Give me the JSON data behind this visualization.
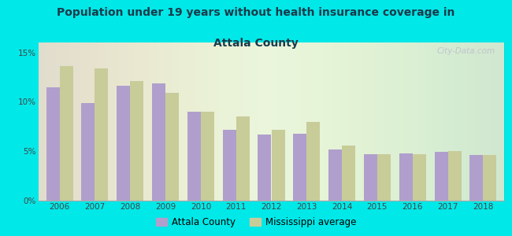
{
  "title_line1": "Population under 19 years without health insurance coverage in",
  "title_line2": "Attala County",
  "years": [
    2006,
    2007,
    2008,
    2009,
    2010,
    2011,
    2012,
    2013,
    2014,
    2015,
    2016,
    2017,
    2018
  ],
  "attala_values": [
    11.5,
    9.9,
    11.6,
    11.9,
    9.0,
    7.2,
    6.7,
    6.8,
    5.2,
    4.7,
    4.8,
    4.9,
    4.6
  ],
  "ms_values": [
    13.6,
    13.4,
    12.1,
    10.9,
    9.0,
    8.5,
    7.2,
    8.0,
    5.6,
    4.7,
    4.7,
    5.0,
    4.6
  ],
  "attala_color": "#b09fcc",
  "ms_color": "#c8cc99",
  "background_outer": "#00e8e8",
  "background_inner_left": "#e8f5e0",
  "background_inner_right": "#f8faf2",
  "bar_width": 0.38,
  "ylim": [
    0,
    16
  ],
  "yticks": [
    0,
    5,
    10,
    15
  ],
  "ytick_labels": [
    "0%",
    "5%",
    "10%",
    "15%"
  ],
  "watermark": "City-Data.com",
  "legend_attala": "Attala County",
  "legend_ms": "Mississippi average"
}
